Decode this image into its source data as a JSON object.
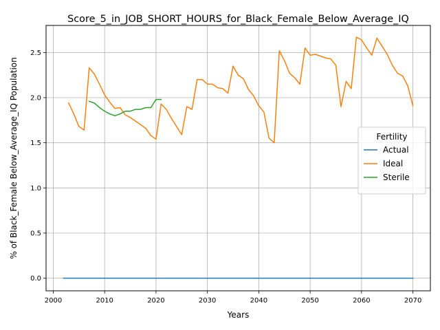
{
  "chart_data": {
    "type": "line",
    "title": "Score_5_in_JOB_SHORT_HOURS_for_Black_Female_Below_Average_IQ",
    "xlabel": "Years",
    "ylabel": "% of Black_Female Below_Average_IQ Population",
    "xlim": [
      1998.6,
      2073.4
    ],
    "ylim": [
      -0.14,
      2.8
    ],
    "xticks": [
      2000,
      2010,
      2020,
      2030,
      2040,
      2050,
      2060,
      2070
    ],
    "yticks": [
      0.0,
      0.5,
      1.0,
      1.5,
      2.0,
      2.5
    ],
    "ytick_labels": [
      "0.0",
      "0.5",
      "1.0",
      "1.5",
      "2.0",
      "2.5"
    ],
    "grid": true,
    "legend": {
      "title": "Fertility",
      "placement": "center-right"
    },
    "series": [
      {
        "name": "Actual",
        "color": "#1f77b4",
        "points": [
          [
            2002,
            0.0
          ],
          [
            2070,
            0.0
          ]
        ]
      },
      {
        "name": "Ideal",
        "color": "#ff7f0e",
        "points": [
          [
            2003,
            1.94
          ],
          [
            2004,
            1.82
          ],
          [
            2005,
            1.68
          ],
          [
            2006,
            1.64
          ],
          [
            2007,
            2.33
          ],
          [
            2008,
            2.26
          ],
          [
            2009,
            2.15
          ],
          [
            2010,
            2.03
          ],
          [
            2011,
            1.95
          ],
          [
            2012,
            1.88
          ],
          [
            2013,
            1.89
          ],
          [
            2014,
            1.81
          ],
          [
            2015,
            1.78
          ],
          [
            2016,
            1.74
          ],
          [
            2017,
            1.7
          ],
          [
            2018,
            1.66
          ],
          [
            2019,
            1.58
          ],
          [
            2020,
            1.54
          ],
          [
            2021,
            1.93
          ],
          [
            2022,
            1.87
          ],
          [
            2023,
            1.77
          ],
          [
            2024,
            1.68
          ],
          [
            2025,
            1.59
          ],
          [
            2026,
            1.9
          ],
          [
            2027,
            1.87
          ],
          [
            2028,
            2.2
          ],
          [
            2029,
            2.2
          ],
          [
            2030,
            2.15
          ],
          [
            2031,
            2.15
          ],
          [
            2032,
            2.11
          ],
          [
            2033,
            2.1
          ],
          [
            2034,
            2.05
          ],
          [
            2035,
            2.35
          ],
          [
            2036,
            2.25
          ],
          [
            2037,
            2.21
          ],
          [
            2038,
            2.09
          ],
          [
            2039,
            2.02
          ],
          [
            2040,
            1.91
          ],
          [
            2041,
            1.84
          ],
          [
            2042,
            1.55
          ],
          [
            2043,
            1.5
          ],
          [
            2044,
            2.52
          ],
          [
            2045,
            2.41
          ],
          [
            2046,
            2.27
          ],
          [
            2047,
            2.22
          ],
          [
            2048,
            2.15
          ],
          [
            2049,
            2.55
          ],
          [
            2050,
            2.47
          ],
          [
            2051,
            2.48
          ],
          [
            2052,
            2.46
          ],
          [
            2053,
            2.44
          ],
          [
            2054,
            2.43
          ],
          [
            2055,
            2.36
          ],
          [
            2056,
            1.9
          ],
          [
            2057,
            2.18
          ],
          [
            2058,
            2.1
          ],
          [
            2059,
            2.67
          ],
          [
            2060,
            2.64
          ],
          [
            2061,
            2.55
          ],
          [
            2062,
            2.47
          ],
          [
            2063,
            2.66
          ],
          [
            2064,
            2.57
          ],
          [
            2065,
            2.48
          ],
          [
            2066,
            2.36
          ],
          [
            2067,
            2.27
          ],
          [
            2068,
            2.24
          ],
          [
            2069,
            2.13
          ],
          [
            2070,
            1.91
          ]
        ]
      },
      {
        "name": "Sterile",
        "color": "#2ca02c",
        "points": [
          [
            2007,
            1.96
          ],
          [
            2008,
            1.94
          ],
          [
            2009,
            1.89
          ],
          [
            2010,
            1.85
          ],
          [
            2011,
            1.82
          ],
          [
            2012,
            1.8
          ],
          [
            2013,
            1.82
          ],
          [
            2014,
            1.85
          ],
          [
            2015,
            1.85
          ],
          [
            2016,
            1.87
          ],
          [
            2017,
            1.87
          ],
          [
            2018,
            1.89
          ],
          [
            2019,
            1.89
          ],
          [
            2020,
            1.98
          ],
          [
            2021,
            1.98
          ]
        ]
      }
    ]
  }
}
